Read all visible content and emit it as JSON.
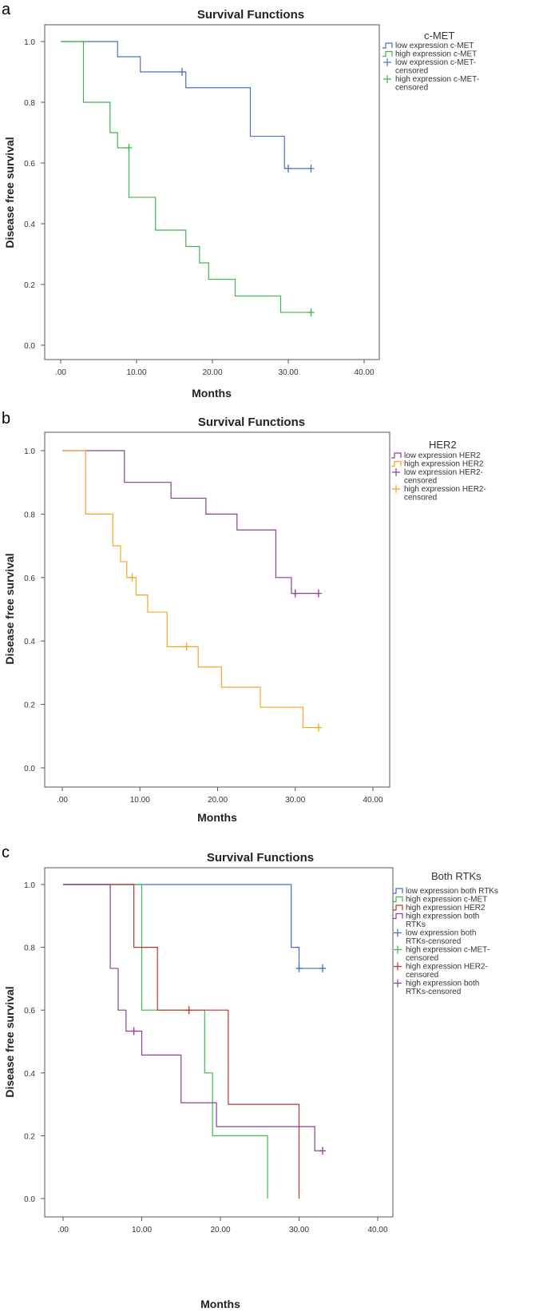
{
  "figure": {
    "panels": [
      {
        "panel_label": "a",
        "title": "Survival Functions",
        "xlabel": "Months",
        "ylabel": "Disease free survival",
        "legend_title": "c-MET",
        "xticks": [
          ".00",
          "10.00",
          "20.00",
          "30.00",
          "40.00"
        ],
        "yticks": [
          "0.0",
          "0.2",
          "0.4",
          "0.6",
          "0.8",
          "1.0"
        ]
      },
      {
        "panel_label": "b",
        "title": "Survival Functions",
        "xlabel": "Months",
        "ylabel": "Disease free survival",
        "legend_title": "HER2",
        "xticks": [
          ".00",
          "10.00",
          "20.00",
          "30.00",
          "40.00"
        ],
        "yticks": [
          "0.0",
          "0.2",
          "0.4",
          "0.6",
          "0.8",
          "1.0"
        ]
      },
      {
        "panel_label": "c",
        "title": "Survival Functions",
        "xlabel": "Months",
        "ylabel": "Disease free survival",
        "legend_title": "Both RTKs",
        "xticks": [
          ".00",
          "10.00",
          "20.00",
          "30.00",
          "40.00"
        ],
        "yticks": [
          "0.0",
          "0.2",
          "0.4",
          "0.6",
          "0.8",
          "1.0"
        ]
      }
    ]
  },
  "chart_data": [
    {
      "type": "line",
      "subtype": "kaplan-meier",
      "title": "Survival Functions",
      "xlabel": "Months",
      "ylabel": "Disease free survival",
      "xlim": [
        0,
        40
      ],
      "ylim": [
        0,
        1
      ],
      "legend_title": "c-MET",
      "series": [
        {
          "name": "low expression c-MET",
          "censored_label": [
            "low expression c-MET-",
            "censored"
          ],
          "color": "#4a72c4",
          "steps": [
            [
              0,
              1.0
            ],
            [
              7.5,
              0.95
            ],
            [
              10.5,
              0.9
            ],
            [
              16.5,
              0.848
            ],
            [
              25,
              0.688
            ],
            [
              29.5,
              0.582
            ],
            [
              33,
              0.582
            ]
          ],
          "censored": [
            [
              16,
              0.9
            ],
            [
              30,
              0.582
            ],
            [
              33,
              0.582
            ]
          ]
        },
        {
          "name": "high expression c-MET",
          "censored_label": [
            "high expression c-MET-",
            "censored"
          ],
          "color": "#3cb84a",
          "steps": [
            [
              0,
              1.0
            ],
            [
              3,
              0.8
            ],
            [
              6.5,
              0.7
            ],
            [
              7.5,
              0.65
            ],
            [
              9,
              0.487
            ],
            [
              12.5,
              0.379
            ],
            [
              16.5,
              0.325
            ],
            [
              18.3,
              0.271
            ],
            [
              19.5,
              0.217
            ],
            [
              23,
              0.162
            ],
            [
              29,
              0.108
            ],
            [
              33,
              0.108
            ]
          ],
          "censored": [
            [
              9,
              0.65
            ],
            [
              33,
              0.108
            ]
          ]
        }
      ]
    },
    {
      "type": "line",
      "subtype": "kaplan-meier",
      "title": "Survival Functions",
      "xlabel": "Months",
      "ylabel": "Disease free survival",
      "xlim": [
        0,
        40
      ],
      "ylim": [
        0,
        1
      ],
      "legend_title": "HER2",
      "series": [
        {
          "name": "low expression HER2",
          "censored_label": [
            "low expression HER2-",
            "censored"
          ],
          "color": "#8e3e98",
          "steps": [
            [
              0,
              1.0
            ],
            [
              8,
              0.9
            ],
            [
              14,
              0.85
            ],
            [
              18.5,
              0.8
            ],
            [
              22.5,
              0.75
            ],
            [
              27.5,
              0.6
            ],
            [
              29.5,
              0.55
            ],
            [
              33,
              0.55
            ]
          ],
          "censored": [
            [
              30,
              0.55
            ],
            [
              33,
              0.55
            ]
          ]
        },
        {
          "name": "high expression HER2",
          "censored_label": [
            "high expression HER2-",
            "censored"
          ],
          "color": "#f5a623",
          "steps": [
            [
              0,
              1.0
            ],
            [
              3,
              0.8
            ],
            [
              6.5,
              0.7
            ],
            [
              7.5,
              0.65
            ],
            [
              8.3,
              0.6
            ],
            [
              9.5,
              0.545
            ],
            [
              11,
              0.491
            ],
            [
              13.5,
              0.382
            ],
            [
              17.5,
              0.318
            ],
            [
              20.5,
              0.254
            ],
            [
              25.5,
              0.191
            ],
            [
              31,
              0.127
            ],
            [
              33,
              0.127
            ]
          ],
          "censored": [
            [
              9,
              0.6
            ],
            [
              16,
              0.382
            ],
            [
              33,
              0.127
            ]
          ]
        }
      ]
    },
    {
      "type": "line",
      "subtype": "kaplan-meier",
      "title": "Survival Functions",
      "xlabel": "Months",
      "ylabel": "Disease free survival",
      "xlim": [
        0,
        40
      ],
      "ylim": [
        0,
        1
      ],
      "legend_title": "Both RTKs",
      "series": [
        {
          "name": "low expression both RTKs",
          "censored_label": [
            "low expression both",
            "RTKs-censored"
          ],
          "color": "#3a6fd0",
          "steps": [
            [
              0,
              1.0
            ],
            [
              29,
              0.8
            ],
            [
              30,
              0.733
            ],
            [
              33,
              0.733
            ]
          ],
          "censored": [
            [
              30,
              0.733
            ],
            [
              33,
              0.733
            ]
          ]
        },
        {
          "name": "high expression c-MET",
          "censored_label": [
            "high expression c-MET-",
            "censored"
          ],
          "color": "#3cb84a",
          "steps": [
            [
              0,
              1.0
            ],
            [
              10,
              0.6
            ],
            [
              18,
              0.4
            ],
            [
              19,
              0.2
            ],
            [
              26,
              0.0
            ]
          ],
          "censored": []
        },
        {
          "name": "high expression HER2",
          "censored_label": [
            "high expression HER2-",
            "censored"
          ],
          "color": "#c0332f",
          "steps": [
            [
              0,
              1.0
            ],
            [
              9,
              0.8
            ],
            [
              12,
              0.6
            ],
            [
              21,
              0.3
            ],
            [
              30,
              0.0
            ]
          ],
          "censored": [
            [
              16,
              0.6
            ]
          ]
        },
        {
          "name": "high expression both RTKs",
          "name_lines": [
            "high expression both",
            "RTKs"
          ],
          "censored_label": [
            "high expression both",
            "RTKs-censored"
          ],
          "color": "#8e3e98",
          "steps": [
            [
              0,
              1.0
            ],
            [
              6,
              0.733
            ],
            [
              7,
              0.6
            ],
            [
              8,
              0.533
            ],
            [
              10,
              0.457
            ],
            [
              15,
              0.305
            ],
            [
              19.5,
              0.229
            ],
            [
              32,
              0.152
            ],
            [
              33,
              0.152
            ]
          ],
          "censored": [
            [
              9,
              0.533
            ],
            [
              33,
              0.152
            ]
          ]
        }
      ]
    }
  ]
}
